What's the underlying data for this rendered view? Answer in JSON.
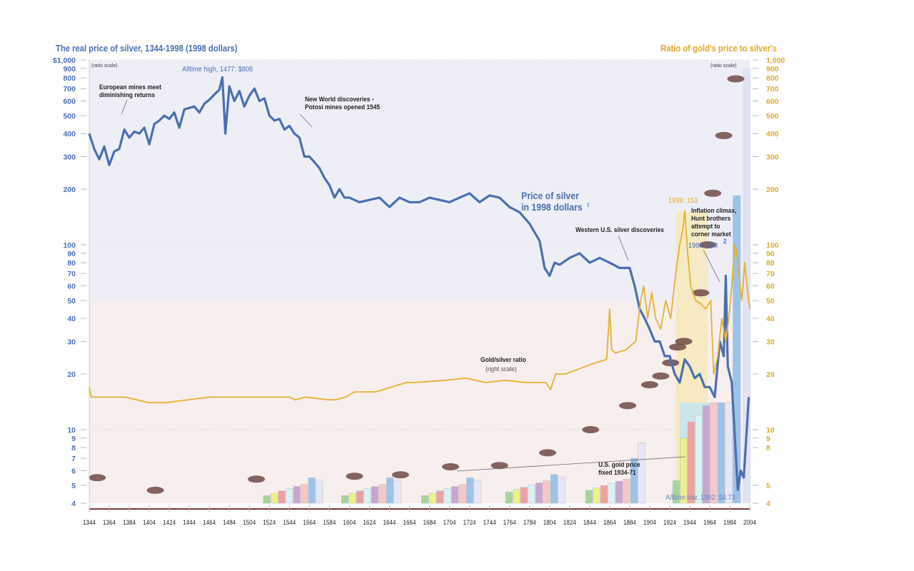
{
  "chart_data": {
    "type": "line",
    "title": "The real price of silver, 1344-1998 (1998 dollars)",
    "right_title": "Ratio of gold's price to silver's",
    "left_scale_note": "(ratio scale)",
    "right_scale_note": "(ratio scale)",
    "y_scale": "log",
    "ylim": [
      4,
      1000
    ],
    "y2lim": [
      4,
      1000
    ],
    "xlim": [
      1344,
      2004
    ],
    "left_ticks": [
      "$1,000",
      "900",
      "800",
      "700",
      "600",
      "500",
      "400",
      "300",
      "200",
      "100",
      "90",
      "80",
      "70",
      "60",
      "50",
      "40",
      "30",
      "20",
      "10",
      "9",
      "8",
      "7",
      "6",
      "5",
      "4"
    ],
    "left_tick_values": [
      1000,
      900,
      800,
      700,
      600,
      500,
      400,
      300,
      200,
      100,
      90,
      80,
      70,
      60,
      50,
      40,
      30,
      20,
      10,
      9,
      8,
      7,
      6,
      5,
      4
    ],
    "right_ticks": [
      "1,000",
      "900",
      "800",
      "700",
      "600",
      "500",
      "400",
      "300",
      "200",
      "100",
      "90",
      "80",
      "70",
      "60",
      "50",
      "40",
      "30",
      "20",
      "10",
      "9",
      "8",
      "5",
      "4"
    ],
    "right_tick_values": [
      1000,
      900,
      800,
      700,
      600,
      500,
      400,
      300,
      200,
      100,
      90,
      80,
      70,
      60,
      50,
      40,
      30,
      20,
      10,
      9,
      8,
      5,
      4
    ],
    "x_ticks": [
      "1344",
      "1364",
      "1384",
      "1404",
      "1424",
      "1444",
      "1464",
      "1484",
      "1504",
      "1524",
      "1544",
      "1564",
      "1584",
      "1604",
      "1624",
      "1644",
      "1664",
      "1684",
      "1704",
      "1724",
      "1744",
      "1764",
      "1784",
      "1804",
      "1824",
      "1844",
      "1864",
      "1884",
      "1904",
      "1924",
      "1944",
      "1964",
      "1984",
      "2004"
    ],
    "series": [
      {
        "name": "Price of silver in 1998 dollars",
        "axis": "left",
        "color": "#4a6fb0",
        "x": [
          1344,
          1349,
          1354,
          1359,
          1364,
          1369,
          1374,
          1379,
          1384,
          1389,
          1394,
          1399,
          1404,
          1409,
          1414,
          1419,
          1424,
          1429,
          1434,
          1439,
          1444,
          1449,
          1454,
          1459,
          1464,
          1469,
          1474,
          1477,
          1480,
          1484,
          1489,
          1494,
          1499,
          1504,
          1509,
          1514,
          1519,
          1524,
          1529,
          1534,
          1539,
          1544,
          1549,
          1554,
          1559,
          1564,
          1569,
          1574,
          1579,
          1584,
          1589,
          1594,
          1599,
          1604,
          1614,
          1624,
          1634,
          1644,
          1654,
          1664,
          1674,
          1684,
          1694,
          1704,
          1714,
          1724,
          1734,
          1744,
          1754,
          1764,
          1774,
          1784,
          1794,
          1799,
          1804,
          1809,
          1814,
          1824,
          1834,
          1844,
          1854,
          1864,
          1874,
          1884,
          1889,
          1894,
          1899,
          1904,
          1909,
          1914,
          1919,
          1924,
          1929,
          1934,
          1939,
          1944,
          1949,
          1954,
          1959,
          1964,
          1969,
          1974,
          1978,
          1980,
          1982,
          1986,
          1992,
          1995,
          1998,
          2003
        ],
        "y": [
          400,
          330,
          290,
          340,
          270,
          320,
          330,
          420,
          380,
          410,
          400,
          430,
          350,
          450,
          470,
          500,
          480,
          520,
          430,
          540,
          550,
          560,
          520,
          580,
          610,
          650,
          690,
          806,
          400,
          720,
          600,
          680,
          560,
          640,
          700,
          600,
          620,
          500,
          470,
          480,
          420,
          440,
          400,
          380,
          300,
          300,
          280,
          260,
          230,
          210,
          180,
          200,
          180,
          180,
          170,
          175,
          180,
          160,
          180,
          170,
          170,
          180,
          175,
          170,
          180,
          190,
          170,
          185,
          180,
          160,
          150,
          130,
          105,
          75,
          68,
          80,
          78,
          85,
          90,
          80,
          85,
          80,
          75,
          75,
          60,
          45,
          40,
          35,
          30,
          30,
          25,
          25,
          20,
          18,
          24,
          22,
          19,
          20,
          17,
          17,
          15,
          30,
          25,
          68,
          22,
          18,
          4.73,
          6,
          5.5,
          15
        ]
      },
      {
        "name": "Gold/silver ratio (right scale)",
        "axis": "right",
        "color": "#e5b12f",
        "x": [
          1344,
          1346,
          1354,
          1380,
          1404,
          1420,
          1464,
          1480,
          1544,
          1550,
          1560,
          1584,
          1590,
          1600,
          1609,
          1630,
          1661,
          1670,
          1700,
          1720,
          1740,
          1760,
          1780,
          1800,
          1805,
          1810,
          1820,
          1840,
          1850,
          1861,
          1864,
          1866,
          1870,
          1880,
          1890,
          1895,
          1898,
          1902,
          1906,
          1910,
          1915,
          1920,
          1925,
          1930,
          1934,
          1937,
          1939,
          1942,
          1945,
          1950,
          1955,
          1960,
          1965,
          1968,
          1972,
          1976,
          1980,
          1983,
          1986,
          1989,
          1991,
          1993,
          1996,
          1999,
          2002,
          2004
        ],
        "y": [
          17,
          15,
          15,
          15,
          14,
          14,
          15,
          15,
          15,
          14.5,
          15,
          14.5,
          14.5,
          15,
          16,
          16,
          18,
          18,
          18.5,
          19,
          18,
          18.5,
          18,
          18,
          16.5,
          20,
          20,
          22,
          23,
          24,
          45,
          27,
          26,
          27,
          30,
          50,
          60,
          40,
          55,
          40,
          35,
          50,
          40,
          70,
          100,
          120,
          153,
          90,
          60,
          50,
          48,
          45,
          50,
          20,
          25,
          40,
          30,
          40,
          60,
          100,
          90,
          70,
          50,
          80,
          55,
          45
        ]
      }
    ],
    "annotations": {
      "alltime_high": "Alltime high, 1477: $806",
      "european_mines": "European mines meet\ndiminishing returns",
      "new_world": "New World discoveries -\nPotosí mines opened 1545",
      "price_label": "Price of silver\nin 1998 dollars",
      "price_footnote": "1",
      "western_us": "Western U.S. silver discoveries",
      "ratio_1939": "1939: 153",
      "inflation": "Inflation climax,\nHunt brothers\nattempt to\ncorner market",
      "peak_1980": "1980: $68",
      "peak_1980_footnote": "2",
      "gold_silver_ratio": "Gold/silver ratio",
      "right_scale": "(right scale)",
      "us_gold": "U.S. gold price\nfixed 1934-71",
      "alltime_low": "Alltime low, 1992: $4.73"
    },
    "colors": {
      "silver": "#4a6fb0",
      "ratio": "#e5b12f",
      "upper_bg": "#eeeef7",
      "lower_bg": "#f7eeee"
    }
  }
}
